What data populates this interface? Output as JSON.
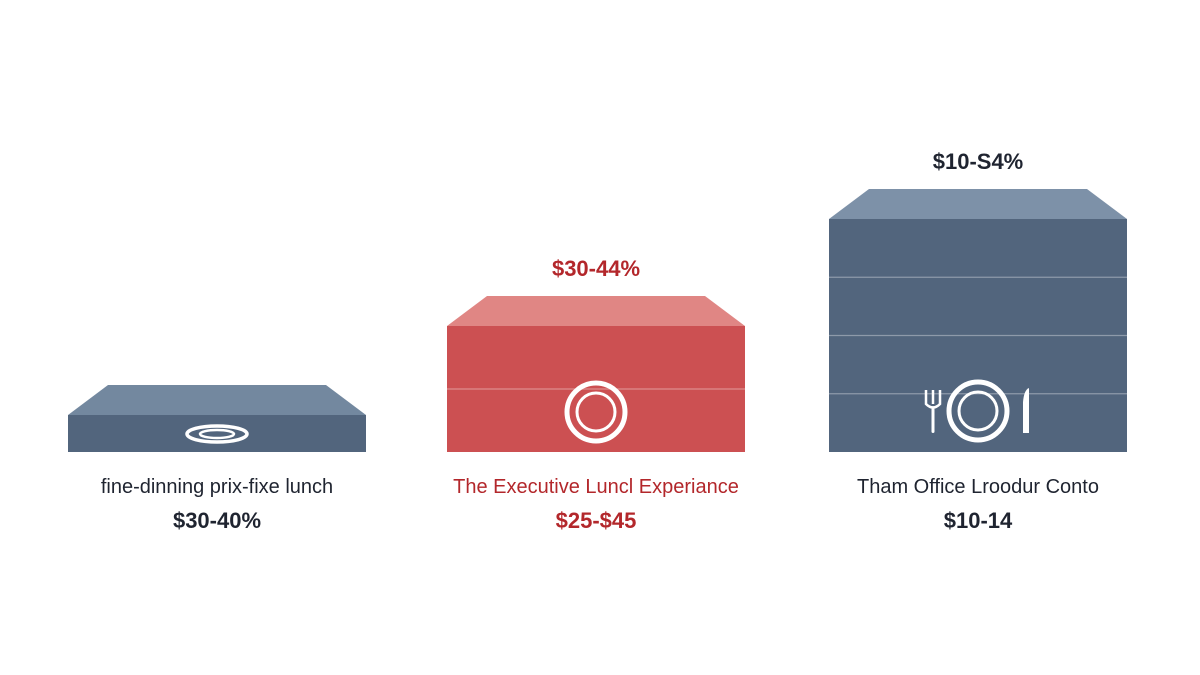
{
  "chart_data": {
    "type": "bar",
    "title": "",
    "xlabel": "",
    "ylabel": "",
    "categories": [
      "fine-dinning prix-fixe lunch",
      "The Executive Luncl Experiance",
      "Tham Office Lroodur Conto"
    ],
    "items": [
      {
        "name": "fine-dinning prix-fixe lunch",
        "price": "$30-40%",
        "top_label": "",
        "relative_height": 1,
        "color": "#52657d",
        "top_color": "#73889f",
        "text_color": "#1f2430",
        "icon": "plate-icon"
      },
      {
        "name": "The Executive Luncl Experiance",
        "price": "$25-$45",
        "top_label": "$30-44%",
        "relative_height": 3.4,
        "color": "#cc5052",
        "top_color": "#e08684",
        "text_color": "#b3272b",
        "icon": "plate-icon"
      },
      {
        "name": "Tham Office Lroodur Conto",
        "price": "$10-14",
        "top_label": "$10-S4%",
        "relative_height": 6.3,
        "color": "#52657d",
        "top_color": "#7d91a8",
        "text_color": "#1f2430",
        "icon": "place-setting-icon"
      }
    ]
  }
}
